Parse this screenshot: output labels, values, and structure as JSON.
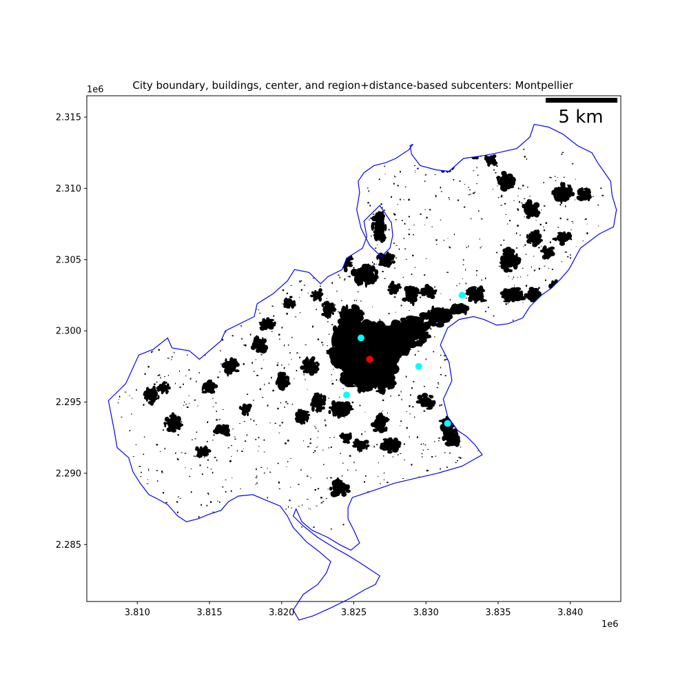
{
  "chart_data": {
    "type": "scatter",
    "title": "City boundary, buildings, center, and region+distance-based subcenters: Montpellier",
    "xlabel": "",
    "ylabel": "",
    "x_offset_label": "1e6",
    "y_offset_label": "1e6",
    "xlim": [
      3.8065,
      3.8435
    ],
    "ylim": [
      2.281,
      2.3165
    ],
    "x_ticks": [
      3.81,
      3.815,
      3.82,
      3.825,
      3.83,
      3.835,
      3.84
    ],
    "x_tick_labels": [
      "3.810",
      "3.815",
      "3.820",
      "3.825",
      "3.830",
      "3.835",
      "3.840"
    ],
    "y_ticks": [
      2.285,
      2.29,
      2.295,
      2.3,
      2.305,
      2.31,
      2.315
    ],
    "y_tick_labels": [
      "2.285",
      "2.290",
      "2.295",
      "2.300",
      "2.305",
      "2.310",
      "2.315"
    ],
    "grid": false,
    "scale_bar": {
      "label": "5 km",
      "length_km": 5
    },
    "colors": {
      "boundary": "#0000ff",
      "buildings": "#000000",
      "center": "#ff0000",
      "subcenters": "#00ffff"
    },
    "center": {
      "x": 3.8261,
      "y": 2.298
    },
    "subcenters": [
      {
        "x": 3.8255,
        "y": 2.2995
      },
      {
        "x": 3.8295,
        "y": 2.2975
      },
      {
        "x": 3.8245,
        "y": 2.2955
      },
      {
        "x": 3.8325,
        "y": 2.3025
      },
      {
        "x": 3.8315,
        "y": 2.2935
      }
    ],
    "boundary": [
      [
        3.808,
        2.2951
      ],
      [
        3.8092,
        2.2963
      ],
      [
        3.8101,
        2.2983
      ],
      [
        3.8111,
        2.2987
      ],
      [
        3.8121,
        2.2995
      ],
      [
        3.8124,
        2.2988
      ],
      [
        3.8136,
        2.2986
      ],
      [
        3.8143,
        2.298
      ],
      [
        3.8158,
        2.2993
      ],
      [
        3.8161,
        2.3
      ],
      [
        3.8181,
        2.301
      ],
      [
        3.8183,
        2.3019
      ],
      [
        3.8194,
        2.3026
      ],
      [
        3.8204,
        2.3035
      ],
      [
        3.8209,
        2.3043
      ],
      [
        3.8219,
        2.3041
      ],
      [
        3.8227,
        2.3033
      ],
      [
        3.8232,
        2.3038
      ],
      [
        3.8242,
        2.3043
      ],
      [
        3.8245,
        2.3051
      ],
      [
        3.8256,
        2.3058
      ],
      [
        3.8259,
        2.3066
      ],
      [
        3.8257,
        2.3077
      ],
      [
        3.8268,
        2.3088
      ],
      [
        3.8276,
        2.3076
      ],
      [
        3.8277,
        2.3067
      ],
      [
        3.8275,
        2.3058
      ],
      [
        3.8269,
        2.3052
      ],
      [
        3.8261,
        2.306
      ],
      [
        3.8255,
        2.3072
      ],
      [
        3.8252,
        2.3085
      ],
      [
        3.8254,
        2.3097
      ],
      [
        3.8253,
        2.3105
      ],
      [
        3.8257,
        2.3111
      ],
      [
        3.8264,
        2.3116
      ],
      [
        3.8272,
        2.3118
      ],
      [
        3.8279,
        2.3121
      ],
      [
        3.8288,
        2.3127
      ],
      [
        3.8291,
        2.3131
      ],
      [
        3.8289,
        2.313
      ],
      [
        3.829,
        2.3124
      ],
      [
        3.8296,
        2.3116
      ],
      [
        3.8307,
        2.3113
      ],
      [
        3.8316,
        2.3112
      ],
      [
        3.8326,
        2.3121
      ],
      [
        3.834,
        2.3123
      ],
      [
        3.835,
        2.3125
      ],
      [
        3.8363,
        2.3128
      ],
      [
        3.8372,
        2.3136
      ],
      [
        3.8375,
        2.3145
      ],
      [
        3.8385,
        2.3143
      ],
      [
        3.8395,
        2.3138
      ],
      [
        3.8405,
        2.313
      ],
      [
        3.8415,
        2.3125
      ],
      [
        3.8419,
        2.3118
      ],
      [
        3.8428,
        2.3105
      ],
      [
        3.8429,
        2.3095
      ],
      [
        3.8432,
        2.3085
      ],
      [
        3.843,
        2.3073
      ],
      [
        3.842,
        2.3068
      ],
      [
        3.8407,
        2.3058
      ],
      [
        3.8399,
        2.3043
      ],
      [
        3.8393,
        2.3036
      ],
      [
        3.8387,
        2.303
      ],
      [
        3.838,
        2.3025
      ],
      [
        3.8372,
        2.3017
      ],
      [
        3.8367,
        2.3009
      ],
      [
        3.8357,
        2.3005
      ],
      [
        3.8349,
        2.3004
      ],
      [
        3.834,
        2.3008
      ],
      [
        3.8333,
        2.301
      ],
      [
        3.8323,
        2.3008
      ],
      [
        3.8315,
        2.3002
      ],
      [
        3.831,
        2.299
      ],
      [
        3.8316,
        2.2978
      ],
      [
        3.8318,
        2.2965
      ],
      [
        3.8312,
        2.2952
      ],
      [
        3.8315,
        2.294
      ],
      [
        3.8322,
        2.293
      ],
      [
        3.8328,
        2.2926
      ],
      [
        3.8334,
        2.292
      ],
      [
        3.8339,
        2.2913
      ],
      [
        3.8325,
        2.2905
      ],
      [
        3.8308,
        2.29
      ],
      [
        3.8295,
        2.2897
      ],
      [
        3.8278,
        2.2893
      ],
      [
        3.8264,
        2.2888
      ],
      [
        3.8249,
        2.2883
      ],
      [
        3.8246,
        2.2876
      ],
      [
        3.8246,
        2.2868
      ],
      [
        3.825,
        2.286
      ],
      [
        3.8254,
        2.2851
      ],
      [
        3.8248,
        2.2846
      ],
      [
        3.824,
        2.285
      ],
      [
        3.8232,
        2.2855
      ],
      [
        3.8221,
        2.286
      ],
      [
        3.8214,
        2.2866
      ],
      [
        3.821,
        2.2875
      ],
      [
        3.8208,
        2.287
      ],
      [
        3.8215,
        2.2863
      ],
      [
        3.8225,
        2.2855
      ],
      [
        3.8236,
        2.2848
      ],
      [
        3.8245,
        2.2843
      ],
      [
        3.8253,
        2.2838
      ],
      [
        3.8262,
        2.2832
      ],
      [
        3.8268,
        2.2828
      ],
      [
        3.8265,
        2.2822
      ],
      [
        3.8257,
        2.2818
      ],
      [
        3.8247,
        2.2812
      ],
      [
        3.8235,
        2.2806
      ],
      [
        3.8222,
        2.28
      ],
      [
        3.8212,
        2.2797
      ],
      [
        3.8208,
        2.2804
      ],
      [
        3.8215,
        2.2815
      ],
      [
        3.8225,
        2.2822
      ],
      [
        3.8231,
        2.283
      ],
      [
        3.8234,
        2.2838
      ],
      [
        3.8226,
        2.2845
      ],
      [
        3.8217,
        2.2852
      ],
      [
        3.8208,
        2.2862
      ],
      [
        3.8204,
        2.287
      ],
      [
        3.8199,
        2.2877
      ],
      [
        3.8187,
        2.2882
      ],
      [
        3.818,
        2.2885
      ],
      [
        3.817,
        2.2884
      ],
      [
        3.8163,
        2.288
      ],
      [
        3.8158,
        2.2874
      ],
      [
        3.8149,
        2.2871
      ],
      [
        3.8142,
        2.2868
      ],
      [
        3.8134,
        2.2866
      ],
      [
        3.8128,
        2.287
      ],
      [
        3.8121,
        2.2878
      ],
      [
        3.8114,
        2.2882
      ],
      [
        3.8108,
        2.2885
      ],
      [
        3.8102,
        2.2893
      ],
      [
        3.8097,
        2.2901
      ],
      [
        3.8094,
        2.2911
      ],
      [
        3.8086,
        2.2918
      ],
      [
        3.8084,
        2.293
      ],
      [
        3.808,
        2.2951
      ]
    ],
    "building_clusters": [
      [
        3.8263,
        2.2985,
        0.0018,
        0.002
      ],
      [
        3.8245,
        2.299,
        0.0012,
        0.0016
      ],
      [
        3.8278,
        2.2993,
        0.0012,
        0.0012
      ],
      [
        3.8255,
        2.2968,
        0.0012,
        0.001
      ],
      [
        3.827,
        2.2965,
        0.0008,
        0.0008
      ],
      [
        3.8248,
        2.301,
        0.0008,
        0.0008
      ],
      [
        3.829,
        2.3,
        0.0012,
        0.001
      ],
      [
        3.8308,
        2.301,
        0.001,
        0.0006
      ],
      [
        3.8322,
        2.3015,
        0.0008,
        0.0004
      ],
      [
        3.8258,
        2.304,
        0.0008,
        0.0008
      ],
      [
        3.8243,
        2.3048,
        0.0006,
        0.0006
      ],
      [
        3.8268,
        2.3073,
        0.0005,
        0.001
      ],
      [
        3.824,
        2.2945,
        0.0008,
        0.0006
      ],
      [
        3.8225,
        2.295,
        0.0006,
        0.0006
      ],
      [
        3.8215,
        2.294,
        0.0005,
        0.0005
      ],
      [
        3.82,
        2.2965,
        0.0005,
        0.0006
      ],
      [
        3.8185,
        2.299,
        0.0005,
        0.0006
      ],
      [
        3.8165,
        2.2975,
        0.0005,
        0.0006
      ],
      [
        3.815,
        2.296,
        0.0005,
        0.0005
      ],
      [
        3.8125,
        2.2935,
        0.0006,
        0.0006
      ],
      [
        3.816,
        2.293,
        0.0006,
        0.0004
      ],
      [
        3.8175,
        2.2945,
        0.0004,
        0.0004
      ],
      [
        3.819,
        2.3005,
        0.0006,
        0.0004
      ],
      [
        3.8205,
        2.302,
        0.0004,
        0.0004
      ],
      [
        3.8225,
        2.3025,
        0.0004,
        0.0004
      ],
      [
        3.8245,
        2.2925,
        0.0004,
        0.0004
      ],
      [
        3.8268,
        2.2935,
        0.0006,
        0.0006
      ],
      [
        3.8275,
        2.292,
        0.0006,
        0.0006
      ],
      [
        3.83,
        2.295,
        0.0006,
        0.0005
      ],
      [
        3.8315,
        2.2935,
        0.0005,
        0.0006
      ],
      [
        3.8318,
        2.2925,
        0.0006,
        0.0006
      ],
      [
        3.8255,
        2.292,
        0.0005,
        0.0004
      ],
      [
        3.824,
        2.289,
        0.0007,
        0.0006
      ],
      [
        3.829,
        2.3025,
        0.0006,
        0.0006
      ],
      [
        3.8302,
        2.3028,
        0.0005,
        0.0005
      ],
      [
        3.8335,
        2.3025,
        0.0007,
        0.0006
      ],
      [
        3.836,
        2.3025,
        0.0008,
        0.0005
      ],
      [
        3.8375,
        2.3025,
        0.0006,
        0.0005
      ],
      [
        3.839,
        2.303,
        0.0005,
        0.0005
      ],
      [
        3.8358,
        2.305,
        0.0006,
        0.0008
      ],
      [
        3.8375,
        2.3065,
        0.0005,
        0.0005
      ],
      [
        3.8385,
        2.3055,
        0.0005,
        0.0004
      ],
      [
        3.8395,
        2.3065,
        0.0006,
        0.0004
      ],
      [
        3.8372,
        2.3085,
        0.0006,
        0.0006
      ],
      [
        3.8395,
        2.3097,
        0.0007,
        0.0006
      ],
      [
        3.841,
        2.3095,
        0.0005,
        0.0005
      ],
      [
        3.8355,
        2.3105,
        0.0006,
        0.0006
      ],
      [
        3.8345,
        2.312,
        0.0004,
        0.0004
      ],
      [
        3.8335,
        2.3125,
        0.0004,
        0.0004
      ],
      [
        3.8315,
        2.3115,
        0.0004,
        0.0004
      ],
      [
        3.8278,
        2.303,
        0.0004,
        0.0004
      ],
      [
        3.811,
        2.2955,
        0.0005,
        0.0006
      ],
      [
        3.8118,
        2.296,
        0.0004,
        0.0004
      ],
      [
        3.8145,
        2.2915,
        0.0005,
        0.0004
      ],
      [
        3.822,
        2.2975,
        0.0006,
        0.0006
      ],
      [
        3.8232,
        2.3015,
        0.0005,
        0.0005
      ],
      [
        3.8272,
        2.305,
        0.0006,
        0.0005
      ]
    ]
  }
}
